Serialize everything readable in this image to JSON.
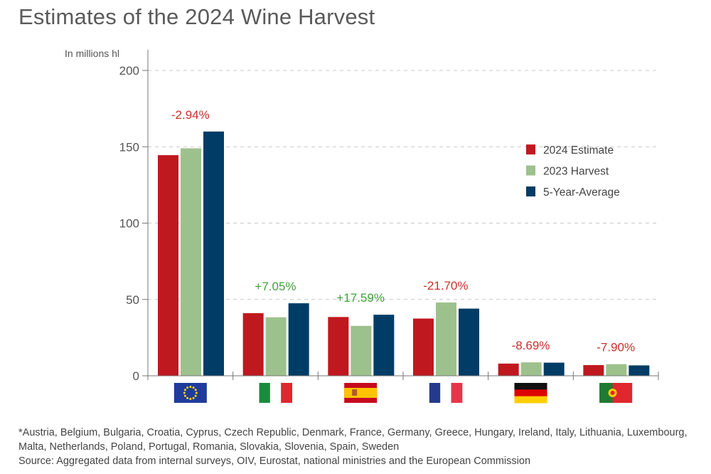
{
  "title": "Estimates of the 2024 Wine Harvest",
  "chart_data": {
    "type": "bar",
    "ylabel": "In millions hl",
    "ylim": [
      0,
      200
    ],
    "yticks": [
      0,
      50,
      100,
      150,
      200
    ],
    "grid": true,
    "legend_position": "right",
    "categories": [
      "EU",
      "Italy",
      "Spain",
      "France",
      "Germany",
      "Portugal"
    ],
    "series": [
      {
        "name": "2024 Estimate",
        "color": "#c0181f",
        "values": [
          144.5,
          41,
          38.5,
          37.5,
          8,
          7
        ]
      },
      {
        "name": "2023 Harvest",
        "color": "#9dc18c",
        "values": [
          149,
          38.3,
          32.7,
          48,
          8.8,
          7.6
        ]
      },
      {
        "name": "5-Year-Average",
        "color": "#003c66",
        "values": [
          160,
          47.5,
          40,
          44,
          8.6,
          6.8
        ]
      }
    ],
    "change_labels": [
      {
        "text": "-2.94%",
        "color": "#c9302c"
      },
      {
        "text": "+7.05%",
        "color": "#3fa13b"
      },
      {
        "text": "+17.59%",
        "color": "#3fa13b"
      },
      {
        "text": "-21.70%",
        "color": "#c9302c"
      },
      {
        "text": "-8.69%",
        "color": "#c9302c"
      },
      {
        "text": "-7.90%",
        "color": "#c9302c"
      }
    ],
    "flags": [
      "eu-flag",
      "italy-flag",
      "spain-flag",
      "france-flag",
      "germany-flag",
      "portugal-flag"
    ]
  },
  "footnote": {
    "countries": "*Austria, Belgium, Bulgaria, Croatia, Cyprus, Czech Republic, Denmark, France, Germany, Greece, Hungary, Ireland, Italy, Lithuania, Luxembourg, Malta, Netherlands, Poland, Portugal, Romania, Slovakia, Slovenia, Spain, Sweden",
    "source": "Source: Aggregated data from internal surveys, OIV, Eurostat, national ministries and the European Commission"
  }
}
